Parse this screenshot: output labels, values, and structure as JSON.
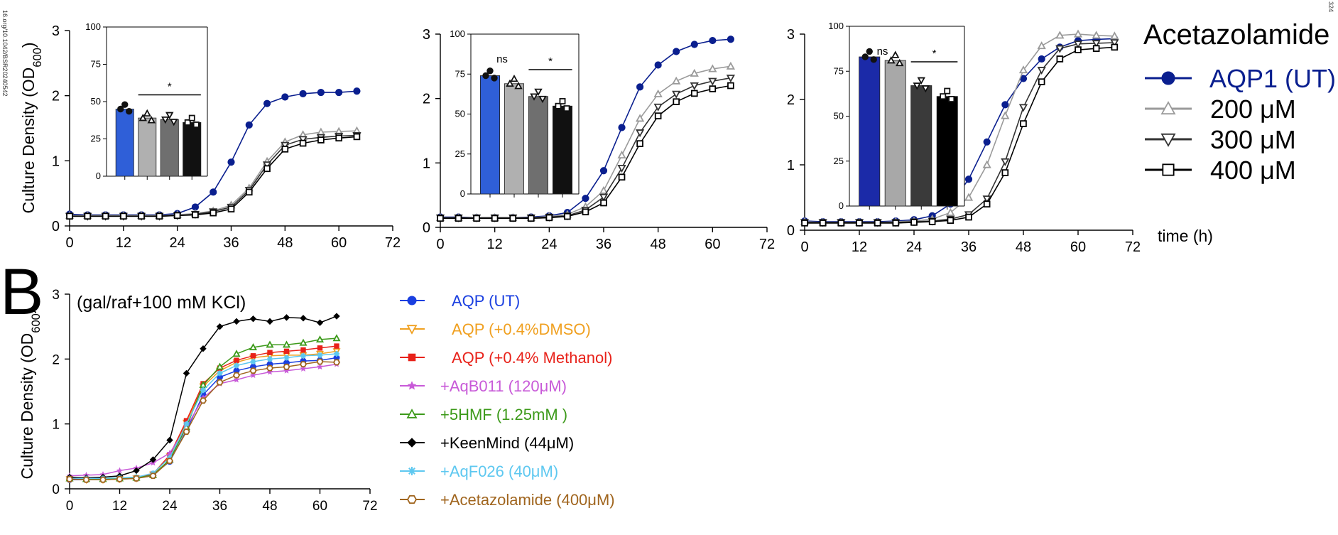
{
  "figure": {
    "side_text_left": "16.org/10.1042/BSR20240542",
    "side_text_right": "324",
    "panel_b_label": "B",
    "time_label": "time (h)",
    "legend_a": {
      "title": "Acetazolamide",
      "entries": [
        {
          "label": "AQP1 (UT)",
          "color": "#0a1f8f",
          "marker": "filled-circle"
        },
        {
          "label": "200 μM",
          "color": "#9a9a9a",
          "marker": "triangle-up"
        },
        {
          "label": "300 μM",
          "color": "#333333",
          "marker": "triangle-down"
        },
        {
          "label": "400 μM",
          "color": "#000000",
          "marker": "square"
        }
      ]
    },
    "legend_b": {
      "entries": [
        {
          "label": "AQP (UT)",
          "color": "#1a3fe0",
          "marker": "filled-circle"
        },
        {
          "label": "AQP (+0.4%DMSO)",
          "color": "#f0a020",
          "marker": "triangle-down"
        },
        {
          "label": "AQP (+0.4% Methanol)",
          "color": "#e8221a",
          "marker": "filled-square"
        },
        {
          "label": "+AqB011 (120μM)",
          "color": "#c85ad8",
          "marker": "star"
        },
        {
          "label": "+5HMF (1.25mM )",
          "color": "#3c9a1a",
          "marker": "triangle-up"
        },
        {
          "label": "+KeenMind (44μM)",
          "color": "#000000",
          "marker": "filled-diamond"
        },
        {
          "label": "+AqF026 (40μM)",
          "color": "#5ec8f0",
          "marker": "asterisk"
        },
        {
          "label": "+Acetazolamide (400μM)",
          "color": "#a0651e",
          "marker": "hexagon"
        }
      ]
    }
  },
  "chart_data": [
    {
      "id": "A1",
      "type": "line",
      "ylabel": "Culture Density (OD600)",
      "xlim": [
        0,
        72
      ],
      "ylim": [
        0,
        3
      ],
      "xticks": [
        0,
        12,
        24,
        36,
        48,
        60,
        72
      ],
      "yticks": [
        0,
        1,
        2,
        3
      ],
      "x": [
        0,
        4,
        8,
        12,
        16,
        20,
        24,
        28,
        32,
        36,
        40,
        44,
        48,
        52,
        56,
        60,
        64
      ],
      "series": [
        {
          "name": "AQP1 (UT)",
          "values": [
            0.18,
            0.17,
            0.17,
            0.17,
            0.17,
            0.17,
            0.19,
            0.29,
            0.52,
            0.98,
            1.55,
            1.88,
            1.98,
            2.03,
            2.05,
            2.05,
            2.07
          ]
        },
        {
          "name": "200 μM",
          "values": [
            0.16,
            0.16,
            0.16,
            0.16,
            0.16,
            0.16,
            0.17,
            0.19,
            0.23,
            0.32,
            0.58,
            0.99,
            1.29,
            1.4,
            1.44,
            1.45,
            1.46
          ]
        },
        {
          "name": "300 μM",
          "values": [
            0.15,
            0.15,
            0.15,
            0.15,
            0.15,
            0.15,
            0.16,
            0.18,
            0.22,
            0.29,
            0.55,
            0.94,
            1.24,
            1.33,
            1.36,
            1.38,
            1.39
          ]
        },
        {
          "name": "400 μM",
          "values": [
            0.15,
            0.15,
            0.15,
            0.15,
            0.15,
            0.15,
            0.16,
            0.17,
            0.2,
            0.26,
            0.52,
            0.88,
            1.18,
            1.27,
            1.32,
            1.35,
            1.37
          ]
        }
      ],
      "inset": {
        "type": "bar",
        "ylim": [
          0,
          100
        ],
        "yticks": [
          0,
          25,
          50,
          75,
          100
        ],
        "values": [
          45,
          39,
          38,
          36
        ],
        "annotations": [
          "*"
        ]
      }
    },
    {
      "id": "A2",
      "type": "line",
      "xlim": [
        0,
        72
      ],
      "ylim": [
        0,
        3
      ],
      "xticks": [
        0,
        12,
        24,
        36,
        48,
        60,
        72
      ],
      "yticks": [
        0,
        1,
        2,
        3
      ],
      "x": [
        0,
        4,
        8,
        12,
        16,
        20,
        24,
        28,
        32,
        36,
        40,
        44,
        48,
        52,
        56,
        60,
        64
      ],
      "series": [
        {
          "name": "AQP1 (UT)",
          "values": [
            0.16,
            0.16,
            0.15,
            0.15,
            0.15,
            0.16,
            0.18,
            0.23,
            0.45,
            0.88,
            1.55,
            2.18,
            2.52,
            2.73,
            2.84,
            2.9,
            2.92
          ]
        },
        {
          "name": "200 μM",
          "values": [
            0.15,
            0.15,
            0.15,
            0.15,
            0.15,
            0.15,
            0.17,
            0.2,
            0.32,
            0.57,
            1.12,
            1.69,
            2.07,
            2.27,
            2.39,
            2.46,
            2.5
          ]
        },
        {
          "name": "300 μM",
          "values": [
            0.15,
            0.15,
            0.15,
            0.15,
            0.15,
            0.15,
            0.16,
            0.18,
            0.27,
            0.47,
            0.92,
            1.47,
            1.87,
            2.07,
            2.2,
            2.27,
            2.32
          ]
        },
        {
          "name": "400 μM",
          "values": [
            0.14,
            0.14,
            0.14,
            0.14,
            0.14,
            0.14,
            0.15,
            0.17,
            0.24,
            0.38,
            0.78,
            1.3,
            1.73,
            1.95,
            2.08,
            2.15,
            2.2
          ]
        }
      ],
      "inset": {
        "type": "bar",
        "ylim": [
          0,
          100
        ],
        "yticks": [
          0,
          25,
          50,
          75,
          100
        ],
        "values": [
          74,
          69,
          61,
          55
        ],
        "annotations": [
          "ns",
          "*"
        ]
      }
    },
    {
      "id": "A3",
      "type": "line",
      "xlim": [
        0,
        72
      ],
      "ylim": [
        0,
        3
      ],
      "xticks": [
        0,
        12,
        24,
        36,
        48,
        60,
        72
      ],
      "yticks": [
        0,
        1,
        2,
        3
      ],
      "x": [
        0,
        4,
        8,
        12,
        16,
        20,
        24,
        28,
        32,
        36,
        40,
        44,
        48,
        52,
        56,
        60,
        64,
        68
      ],
      "series": [
        {
          "name": "AQP1 (UT)",
          "values": [
            0.14,
            0.13,
            0.13,
            0.13,
            0.13,
            0.14,
            0.16,
            0.22,
            0.4,
            0.78,
            1.35,
            1.92,
            2.32,
            2.62,
            2.8,
            2.9,
            2.92,
            2.93
          ]
        },
        {
          "name": "200 μM",
          "values": [
            0.13,
            0.12,
            0.12,
            0.12,
            0.12,
            0.13,
            0.14,
            0.17,
            0.27,
            0.5,
            1.0,
            1.75,
            2.45,
            2.82,
            2.98,
            3.0,
            2.98,
            2.97
          ]
        },
        {
          "name": "300 μM",
          "values": [
            0.12,
            0.12,
            0.12,
            0.12,
            0.12,
            0.12,
            0.13,
            0.14,
            0.17,
            0.24,
            0.48,
            1.05,
            1.88,
            2.45,
            2.78,
            2.85,
            2.86,
            2.87
          ]
        },
        {
          "name": "400 μM",
          "values": [
            0.11,
            0.11,
            0.11,
            0.11,
            0.11,
            0.11,
            0.12,
            0.13,
            0.15,
            0.2,
            0.4,
            0.88,
            1.63,
            2.27,
            2.62,
            2.76,
            2.78,
            2.8
          ]
        }
      ],
      "inset": {
        "type": "bar",
        "ylim": [
          0,
          100
        ],
        "yticks": [
          0,
          25,
          50,
          75,
          100
        ],
        "values": [
          83,
          81,
          67,
          61
        ],
        "annotations": [
          "ns",
          "*"
        ]
      }
    },
    {
      "id": "B",
      "type": "line",
      "title": "(gal/raf+100 mM KCl)",
      "ylabel": "Culture Density (OD600)",
      "xlim": [
        0,
        72
      ],
      "ylim": [
        0,
        3
      ],
      "xticks": [
        0,
        12,
        24,
        36,
        48,
        60,
        72
      ],
      "yticks": [
        0,
        1,
        2,
        3
      ],
      "x": [
        0,
        4,
        8,
        12,
        16,
        20,
        24,
        28,
        32,
        36,
        40,
        44,
        48,
        52,
        56,
        60,
        64
      ],
      "series": [
        {
          "name": "AQP (UT)",
          "values": [
            0.14,
            0.14,
            0.15,
            0.15,
            0.16,
            0.22,
            0.42,
            0.9,
            1.45,
            1.72,
            1.82,
            1.88,
            1.92,
            1.94,
            1.97,
            1.98,
            2.02
          ]
        },
        {
          "name": "AQP (+0.4%DMSO)",
          "values": [
            0.15,
            0.14,
            0.14,
            0.15,
            0.16,
            0.22,
            0.5,
            1.02,
            1.58,
            1.82,
            1.95,
            2.02,
            2.05,
            2.06,
            2.06,
            2.08,
            2.12
          ]
        },
        {
          "name": "AQP (+0.4% Methanol)",
          "values": [
            0.15,
            0.15,
            0.15,
            0.16,
            0.17,
            0.23,
            0.52,
            1.05,
            1.62,
            1.86,
            1.98,
            2.05,
            2.1,
            2.12,
            2.14,
            2.17,
            2.2
          ]
        },
        {
          "name": "+AqB011 (120μM)",
          "values": [
            0.2,
            0.21,
            0.22,
            0.28,
            0.32,
            0.4,
            0.55,
            0.95,
            1.4,
            1.62,
            1.68,
            1.75,
            1.8,
            1.82,
            1.85,
            1.88,
            1.92
          ]
        },
        {
          "name": "+5HMF (1.25mM )",
          "values": [
            0.16,
            0.15,
            0.15,
            0.16,
            0.17,
            0.21,
            0.45,
            0.95,
            1.6,
            1.88,
            2.08,
            2.18,
            2.22,
            2.22,
            2.25,
            2.3,
            2.32
          ]
        },
        {
          "name": "+KeenMind (44μM)",
          "values": [
            0.18,
            0.17,
            0.18,
            0.2,
            0.28,
            0.45,
            0.75,
            1.78,
            2.16,
            2.5,
            2.58,
            2.62,
            2.58,
            2.64,
            2.63,
            2.56,
            2.66
          ]
        },
        {
          "name": "+AqF026 (40μM)",
          "values": [
            0.16,
            0.16,
            0.16,
            0.17,
            0.18,
            0.24,
            0.48,
            1.0,
            1.52,
            1.78,
            1.9,
            1.96,
            2.0,
            2.02,
            2.05,
            2.06,
            2.08
          ]
        },
        {
          "name": "+Acetazolamide (400μM)",
          "values": [
            0.15,
            0.14,
            0.14,
            0.15,
            0.16,
            0.2,
            0.43,
            0.88,
            1.36,
            1.64,
            1.75,
            1.82,
            1.86,
            1.88,
            1.92,
            1.96,
            1.95
          ]
        }
      ]
    }
  ]
}
